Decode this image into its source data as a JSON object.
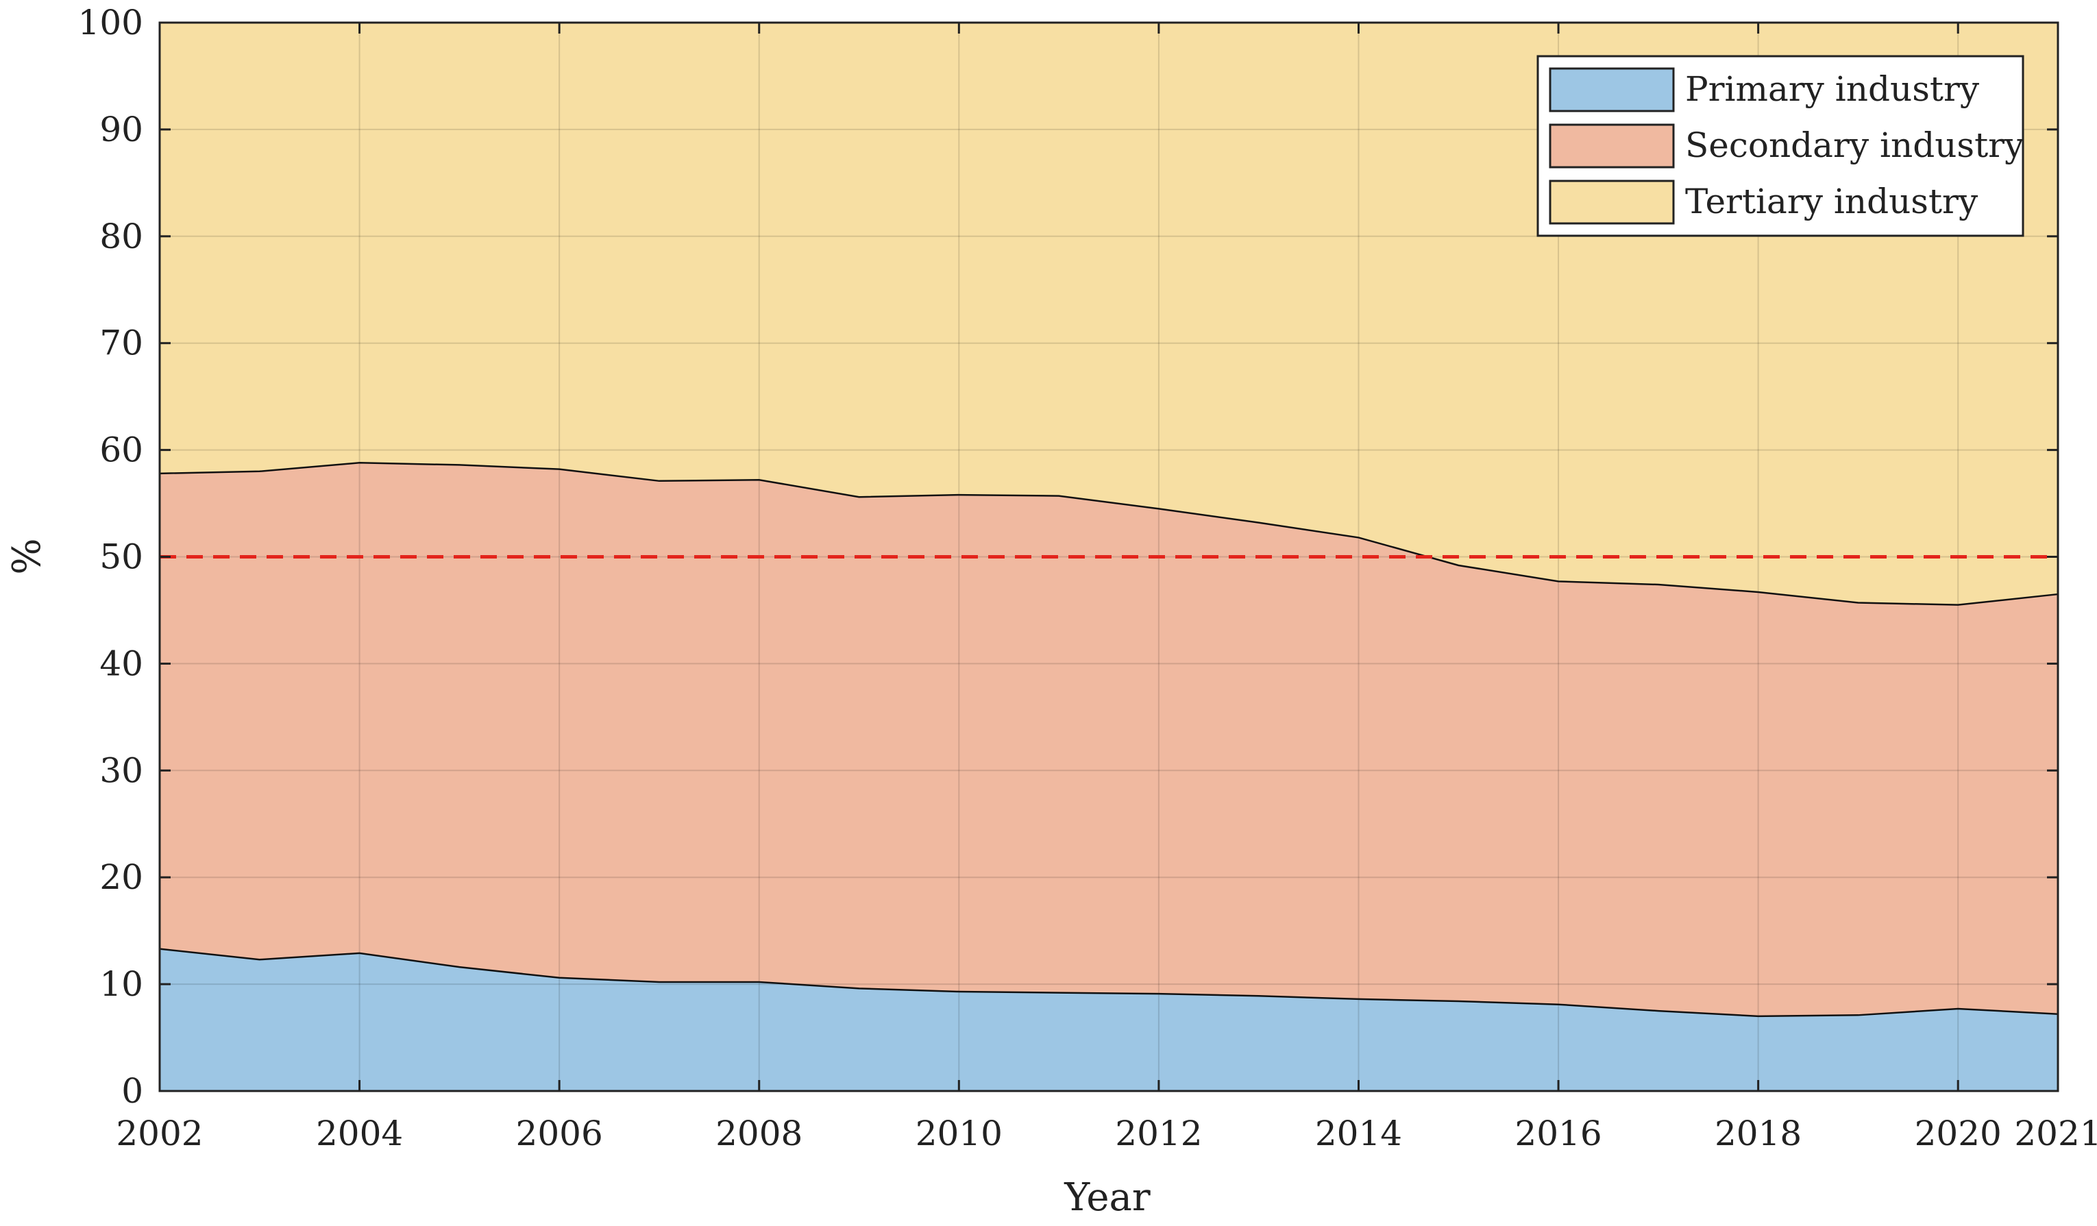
{
  "chart_data": {
    "type": "area",
    "stacked": true,
    "title": "",
    "xlabel": "Year",
    "ylabel": "%",
    "xlim": [
      2002,
      2021
    ],
    "ylim": [
      0,
      100
    ],
    "x": [
      2002,
      2003,
      2004,
      2005,
      2006,
      2007,
      2008,
      2009,
      2010,
      2011,
      2012,
      2013,
      2014,
      2015,
      2016,
      2017,
      2018,
      2019,
      2020,
      2021
    ],
    "x_ticks": [
      "2002",
      "2004",
      "2006",
      "2008",
      "2010",
      "2012",
      "2014",
      "2016",
      "2018",
      "2020",
      "2021"
    ],
    "y_ticks": [
      "0",
      "10",
      "20",
      "30",
      "40",
      "50",
      "60",
      "70",
      "80",
      "90",
      "100"
    ],
    "grid": true,
    "legend_position": "top-right",
    "series": [
      {
        "name": "Primary industry",
        "color": "#9dc6e4",
        "values": [
          13.3,
          12.3,
          12.9,
          11.6,
          10.6,
          10.2,
          10.2,
          9.6,
          9.3,
          9.2,
          9.1,
          8.9,
          8.6,
          8.4,
          8.1,
          7.5,
          7.0,
          7.1,
          7.7,
          7.2
        ]
      },
      {
        "name": "Secondary industry",
        "color": "#f0b9a0",
        "values": [
          44.5,
          45.7,
          45.9,
          47.0,
          47.6,
          46.9,
          47.0,
          46.0,
          46.5,
          46.5,
          45.4,
          44.3,
          43.2,
          40.8,
          39.6,
          39.9,
          39.7,
          38.6,
          37.8,
          39.3
        ]
      },
      {
        "name": "Tertiary industry",
        "color": "#f7dfa3",
        "values": [
          42.2,
          42.0,
          41.2,
          41.4,
          41.8,
          42.9,
          42.8,
          44.4,
          44.2,
          44.3,
          45.5,
          46.8,
          48.2,
          50.8,
          52.3,
          52.6,
          53.3,
          54.3,
          54.5,
          53.5
        ]
      }
    ],
    "reference_line": {
      "y": 50,
      "color": "#e3241b",
      "style": "dashed"
    }
  }
}
